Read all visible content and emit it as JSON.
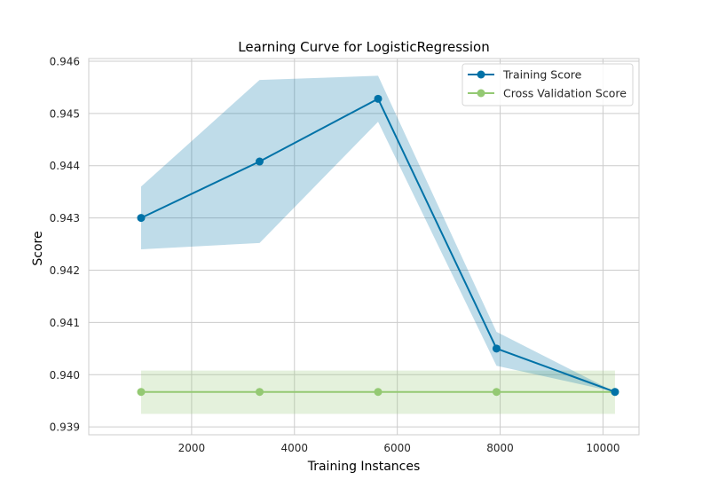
{
  "chart_data": {
    "type": "line",
    "title": "Learning Curve for LogisticRegression",
    "xlabel": "Training Instances",
    "ylabel": "Score",
    "xlim": [
      0,
      10700
    ],
    "ylim": [
      0.93885,
      0.94605
    ],
    "x_ticks": [
      2000,
      4000,
      6000,
      8000,
      10000
    ],
    "x_tick_labels": [
      "2000",
      "4000",
      "6000",
      "8000",
      "10000"
    ],
    "y_ticks": [
      0.939,
      0.94,
      0.941,
      0.942,
      0.943,
      0.944,
      0.945,
      0.946
    ],
    "y_tick_labels": [
      "0.939",
      "0.940",
      "0.941",
      "0.942",
      "0.943",
      "0.944",
      "0.945",
      "0.946"
    ],
    "grid": true,
    "legend_position": "top-right",
    "x": [
      1018,
      3322,
      5626,
      7929,
      10233
    ],
    "series": [
      {
        "name": "Training Score",
        "color": "#0072a7",
        "values": [
          0.943,
          0.94408,
          0.94528,
          0.9405,
          0.93967
        ],
        "band_upper": [
          0.9436,
          0.94564,
          0.94572,
          0.94082,
          0.93967
        ],
        "band_lower": [
          0.9424,
          0.94252,
          0.94484,
          0.94017,
          0.93967
        ]
      },
      {
        "name": "Cross Validation Score",
        "color": "#94c973",
        "values": [
          0.93967,
          0.93967,
          0.93967,
          0.93967,
          0.93967
        ],
        "band_upper": [
          0.94008,
          0.94008,
          0.94008,
          0.94008,
          0.94008
        ],
        "band_lower": [
          0.93925,
          0.93925,
          0.93925,
          0.93925,
          0.93925
        ]
      }
    ]
  }
}
